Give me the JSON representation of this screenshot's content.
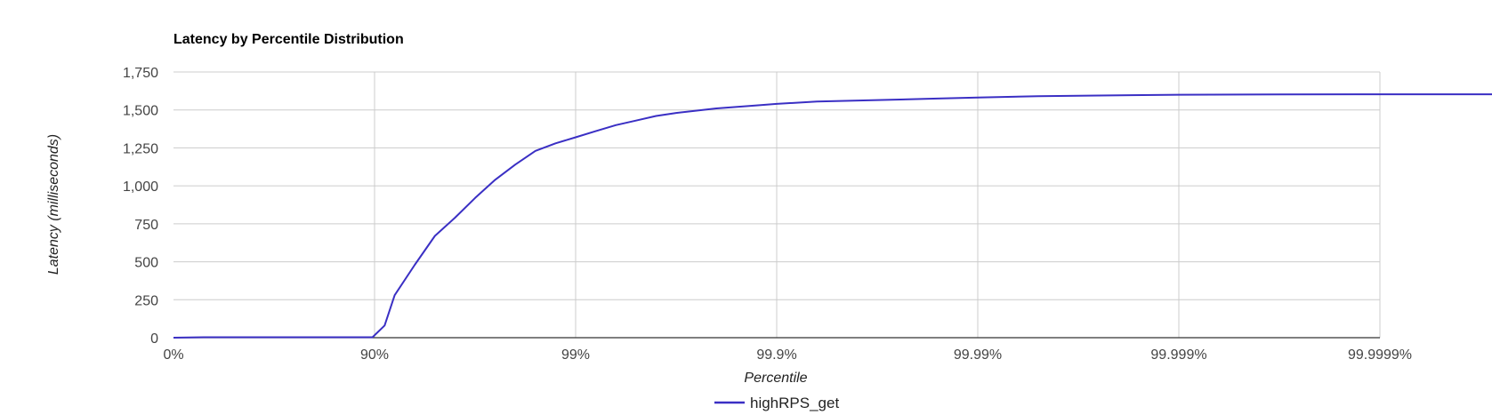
{
  "chart_data": {
    "type": "line",
    "title": "Latency by Percentile Distribution",
    "xlabel": "Percentile",
    "ylabel": "Latency (milliseconds)",
    "x_scale": "log",
    "x_ticks": [
      "0%",
      "90%",
      "99%",
      "99.9%",
      "99.99%",
      "99.999%",
      "99.9999%"
    ],
    "y_ticks": [
      "0",
      "250",
      "500",
      "750",
      "1,000",
      "1,250",
      "1,500",
      "1,750"
    ],
    "ylim": [
      0,
      1750
    ],
    "grid": true,
    "legend_position": "bottom",
    "colors": {
      "series": "#3a2fc4",
      "grid": "#cccccc",
      "axis": "#333333",
      "text": "#444444"
    },
    "series": [
      {
        "name": "highRPS_get",
        "x": [
          0,
          0.15,
          0.99,
          1.05,
          1.1,
          1.2,
          1.3,
          1.4,
          1.5,
          1.6,
          1.7,
          1.8,
          1.9,
          2.0,
          2.1,
          2.2,
          2.3,
          2.4,
          2.5,
          2.7,
          2.9,
          3.0,
          3.2,
          3.5,
          3.8,
          4.0,
          4.3,
          4.6,
          5.0,
          5.5,
          6.0,
          6.5,
          6.9
        ],
        "values": [
          0,
          3,
          3,
          80,
          280,
          480,
          670,
          790,
          920,
          1040,
          1140,
          1230,
          1280,
          1320,
          1360,
          1400,
          1430,
          1460,
          1480,
          1510,
          1530,
          1540,
          1555,
          1565,
          1575,
          1582,
          1590,
          1595,
          1600,
          1602,
          1603,
          1603,
          1603
        ]
      }
    ]
  }
}
